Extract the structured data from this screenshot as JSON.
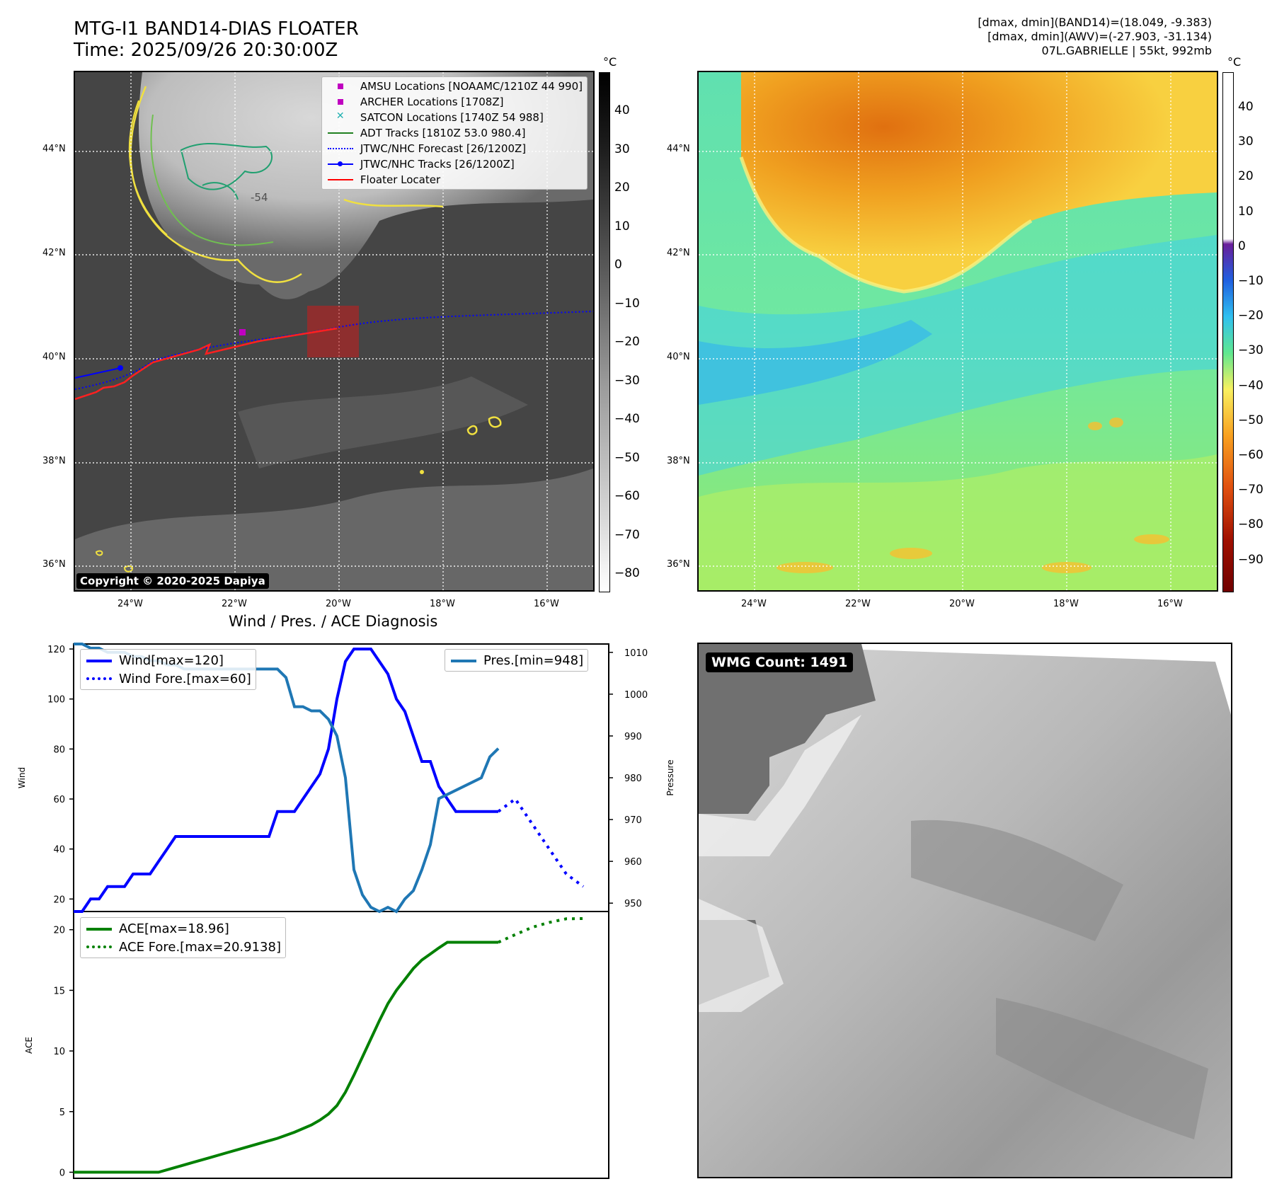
{
  "header": {
    "title_line1": "MTG-I1 BAND14-DIAS FLOATER",
    "title_line2": "Time: 2025/09/26 20:30:00Z",
    "info_line1": "[dmax, dmin](BAND14)=(18.049, -9.383)",
    "info_line2": "[dmax, dmin](AWV)=(-27.903, -31.134)",
    "info_line3": "07L.GABRIELLE | 55kt, 992mb"
  },
  "map": {
    "lat_labels": [
      "44°N",
      "42°N",
      "40°N",
      "38°N",
      "36°N"
    ],
    "lon_labels": [
      "24°W",
      "22°W",
      "20°W",
      "18°W",
      "16°W"
    ],
    "contour_label": "-54",
    "copyright": "Copyright © 2020-2025 Dapiya",
    "legend": [
      {
        "label": "AMSU Locations [NOAAMC/1210Z 44 990]",
        "color": "#c000c0",
        "kind": "square"
      },
      {
        "label": "ARCHER Locations [1708Z]",
        "color": "#c000c0",
        "kind": "square"
      },
      {
        "label": "SATCON Locations [1740Z 54 988]",
        "color": "#20b0b0",
        "kind": "x"
      },
      {
        "label": "ADT Tracks [1810Z 53.0 980.4]",
        "color": "#208020",
        "kind": "line"
      },
      {
        "label": "JTWC/NHC Forecast [26/1200Z]",
        "color": "#0000ff",
        "kind": "dotted"
      },
      {
        "label": "JTWC/NHC Tracks [26/1200Z]",
        "color": "#0000ff",
        "kind": "line-dot"
      },
      {
        "label": "Floater Locater",
        "color": "#ff0000",
        "kind": "line"
      }
    ]
  },
  "colorbars": {
    "unit": "°C",
    "left_ticks": [
      "40",
      "30",
      "20",
      "10",
      "0",
      "−10",
      "−20",
      "−30",
      "−40",
      "−50",
      "−60",
      "−70",
      "−80"
    ],
    "right_ticks": [
      "40",
      "30",
      "20",
      "10",
      "0",
      "−10",
      "−20",
      "−30",
      "−40",
      "−50",
      "−60",
      "−70",
      "−80",
      "−90"
    ]
  },
  "diag": {
    "title": "Wind / Pres. / ACE Diagnosis",
    "wind_ylabel": "Wind",
    "pres_ylabel": "Pressure",
    "ace_ylabel": "ACE",
    "legend_wind": "Wind[max=120]",
    "legend_wind_fore": "Wind Fore.[max=60]",
    "legend_pres": "Pres.[min=948]",
    "legend_ace": "ACE[max=18.96]",
    "legend_ace_fore": "ACE Fore.[max=20.9138]",
    "wmg": "WMG Count: 1491"
  },
  "chart_data": [
    {
      "type": "line",
      "title": "Wind / Pres. / ACE Diagnosis",
      "ylabel": "Wind",
      "ylim": [
        15,
        122
      ],
      "y_ticks": [
        20,
        40,
        60,
        80,
        100,
        120
      ],
      "xlim": [
        0,
        63
      ],
      "series": [
        {
          "name": "Wind[max=120]",
          "color": "#0000ff",
          "style": "solid",
          "x": [
            0,
            1,
            2,
            3,
            4,
            5,
            6,
            7,
            8,
            9,
            10,
            11,
            12,
            13,
            14,
            15,
            16,
            17,
            18,
            19,
            20,
            21,
            22,
            23,
            24,
            25,
            26,
            27,
            28,
            29,
            30,
            31,
            32,
            33,
            34,
            35,
            36,
            37,
            38,
            39,
            40,
            41,
            42,
            43,
            44,
            45,
            46,
            47,
            48,
            49,
            50
          ],
          "values": [
            15,
            15,
            20,
            20,
            25,
            25,
            25,
            30,
            30,
            30,
            35,
            40,
            45,
            45,
            45,
            45,
            45,
            45,
            45,
            45,
            45,
            45,
            45,
            45,
            55,
            55,
            55,
            60,
            65,
            70,
            80,
            100,
            115,
            120,
            120,
            120,
            115,
            110,
            100,
            95,
            85,
            75,
            75,
            65,
            60,
            55,
            55,
            55,
            55,
            55,
            55
          ]
        },
        {
          "name": "Wind Fore.[max=60]",
          "color": "#0000ff",
          "style": "dotted",
          "x": [
            50,
            52,
            54,
            56,
            58,
            60
          ],
          "values": [
            55,
            60,
            50,
            40,
            30,
            25
          ]
        }
      ]
    },
    {
      "type": "line",
      "ylabel": "Pressure",
      "ylim": [
        948,
        1012
      ],
      "y_ticks": [
        950,
        960,
        970,
        980,
        990,
        1000,
        1010
      ],
      "xlim": [
        0,
        63
      ],
      "series": [
        {
          "name": "Pres.[min=948]",
          "color": "#1f77b4",
          "style": "solid",
          "x": [
            0,
            1,
            2,
            3,
            4,
            5,
            6,
            7,
            8,
            9,
            10,
            11,
            12,
            13,
            14,
            15,
            16,
            17,
            18,
            19,
            20,
            21,
            22,
            23,
            24,
            25,
            26,
            27,
            28,
            29,
            30,
            31,
            32,
            33,
            34,
            35,
            36,
            37,
            38,
            39,
            40,
            41,
            42,
            43,
            44,
            45,
            46,
            47,
            48,
            49,
            50
          ],
          "values": [
            1012,
            1012,
            1011,
            1011,
            1010,
            1010,
            1010,
            1009,
            1009,
            1008,
            1008,
            1007,
            1007,
            1006,
            1006,
            1006,
            1006,
            1006,
            1006,
            1006,
            1006,
            1006,
            1006,
            1006,
            1006,
            1004,
            997,
            997,
            996,
            996,
            994,
            990,
            980,
            958,
            952,
            949,
            948,
            949,
            948,
            951,
            953,
            958,
            964,
            975,
            976,
            977,
            978,
            979,
            980,
            985,
            987
          ]
        }
      ]
    },
    {
      "type": "line",
      "ylabel": "ACE",
      "ylim": [
        -0.5,
        21.5
      ],
      "y_ticks": [
        0,
        5,
        10,
        15,
        20
      ],
      "xlim": [
        0,
        63
      ],
      "series": [
        {
          "name": "ACE[max=18.96]",
          "color": "#008000",
          "style": "solid",
          "x": [
            0,
            2,
            4,
            6,
            8,
            10,
            12,
            14,
            16,
            18,
            20,
            22,
            24,
            26,
            28,
            29,
            30,
            31,
            32,
            33,
            34,
            35,
            36,
            37,
            38,
            39,
            40,
            41,
            42,
            43,
            44,
            45,
            46,
            47,
            48,
            49,
            50
          ],
          "values": [
            0,
            0,
            0,
            0,
            0,
            0,
            0.4,
            0.8,
            1.2,
            1.6,
            2.0,
            2.4,
            2.8,
            3.3,
            3.9,
            4.3,
            4.8,
            5.5,
            6.6,
            8.0,
            9.5,
            11.0,
            12.5,
            13.9,
            15.0,
            15.9,
            16.8,
            17.5,
            18.0,
            18.5,
            18.96,
            18.96,
            18.96,
            18.96,
            18.96,
            18.96,
            18.96
          ]
        },
        {
          "name": "ACE Fore.[max=20.9138]",
          "color": "#008000",
          "style": "dotted",
          "x": [
            50,
            52,
            54,
            56,
            58,
            60
          ],
          "values": [
            18.96,
            19.6,
            20.2,
            20.6,
            20.9,
            20.9138
          ]
        }
      ]
    }
  ]
}
